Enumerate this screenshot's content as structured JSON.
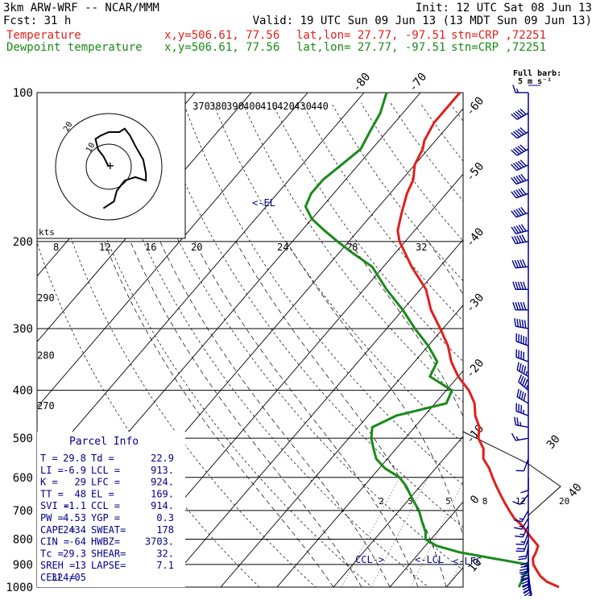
{
  "header": {
    "model": "3km ARW-WRF -- NCAR/MMM",
    "init": "Init: 12 UTC Sat 08 Jun 13",
    "fcst": "Fcst:   31 h",
    "valid": "Valid: 19 UTC Sun 09 Jun 13 (13 MDT Sun 09 Jun 13)",
    "temp_line": {
      "label": "Temperature",
      "coords": "x,y=506.61, 77.56",
      "latlon": "lat,lon= 27.77, -97.51",
      "station": "stn=CRP ,72251"
    },
    "dew_line": {
      "label": "Dewpoint temperature",
      "coords": "x,y=506.61, 77.56",
      "latlon": "lat,lon= 27.77, -97.51",
      "station": "stn=CRP ,72251"
    }
  },
  "colors": {
    "temperature": "#e0201c",
    "dewpoint": "#1a8a1a",
    "axes": "#000000",
    "annot": "#00008b",
    "wind": "#00008b"
  },
  "barb_key": {
    "title": "Full barb:",
    "value": "5 m s⁻¹"
  },
  "parcel_info": {
    "title": "Parcel Info",
    "rows": [
      [
        "T  =",
        "29.8",
        "Td =",
        "22.9"
      ],
      [
        "LI =",
        "-6.9",
        "LCL =",
        "913."
      ],
      [
        "K  =",
        "29",
        "LFC =",
        "924."
      ],
      [
        "TT =",
        "48",
        "EL  =",
        "169."
      ],
      [
        "SVI =",
        "-1.1",
        "CCL =",
        "914."
      ],
      [
        "PW =",
        "4.53",
        "YGP =",
        "0.3"
      ],
      [
        "CAPE =",
        "2434",
        "SWEAT=",
        "178"
      ],
      [
        "CIN =",
        "-64",
        "HWBZ=",
        "3703."
      ],
      [
        "Tc =",
        "29.3",
        "SHEAR=",
        "32."
      ],
      [
        "SREH =",
        "13",
        "LAPSE=",
        "7.1"
      ],
      [
        "CELL =",
        "324/05",
        "",
        ""
      ]
    ]
  },
  "labels": {
    "el": "<-EL",
    "lcl": "<-LCL",
    "lfc": "<-LFC",
    "ccl": "CCL->"
  },
  "hodograph": {
    "unit_label": "kts",
    "ring_labels": [
      "10",
      "20"
    ],
    "trace": [
      [
        0,
        0
      ],
      [
        -2,
        -3
      ],
      [
        -4,
        -5
      ],
      [
        -5,
        -8
      ],
      [
        -3,
        -9
      ],
      [
        0,
        -10
      ],
      [
        4,
        -10
      ],
      [
        6,
        -11
      ],
      [
        8,
        -9
      ],
      [
        10,
        -6
      ],
      [
        13,
        -2
      ],
      [
        14,
        2
      ],
      [
        14,
        4
      ],
      [
        10,
        3
      ],
      [
        6,
        4
      ],
      [
        3,
        7
      ],
      [
        2,
        10
      ],
      [
        -2,
        12
      ]
    ]
  },
  "chart_data": {
    "type": "skew-t",
    "pressure_ticks": [
      100,
      200,
      300,
      400,
      500,
      600,
      700,
      800,
      900,
      1000
    ],
    "p_range": [
      1000,
      100
    ],
    "temp_ticks": [
      40,
      30,
      20,
      10,
      0,
      -10,
      -20,
      -30,
      -40,
      -50,
      -60,
      -70,
      -80
    ],
    "theta_e_labels": [
      {
        "text": "370",
        "t": -80
      },
      {
        "text": "380",
        "t": -76
      },
      {
        "text": "390",
        "t": -72
      },
      {
        "text": "400",
        "t": -68
      },
      {
        "text": "410",
        "t": -64
      },
      {
        "text": "420",
        "t": -60
      },
      {
        "text": "430",
        "t": -56
      },
      {
        "text": "440",
        "t": -52
      }
    ],
    "mixing_ratio_labels": [
      "2",
      "3",
      "5",
      "8",
      "12",
      "20"
    ],
    "theta_labels": [
      {
        "text": "290",
        "p": 260
      },
      {
        "text": "280",
        "p": 340
      },
      {
        "text": "270",
        "p": 430
      }
    ],
    "kts_labels": [
      "8",
      "12",
      "16",
      "20",
      "24",
      "28",
      "32"
    ],
    "temperature": [
      [
        1000,
        30
      ],
      [
        975,
        27
      ],
      [
        950,
        25
      ],
      [
        925,
        23.5
      ],
      [
        900,
        22
      ],
      [
        875,
        21
      ],
      [
        850,
        20.6
      ],
      [
        825,
        20
      ],
      [
        800,
        18
      ],
      [
        775,
        16
      ],
      [
        750,
        14
      ],
      [
        725,
        11.5
      ],
      [
        700,
        9.5
      ],
      [
        675,
        7.5
      ],
      [
        650,
        5.5
      ],
      [
        625,
        3.5
      ],
      [
        600,
        1.5
      ],
      [
        575,
        -0.5
      ],
      [
        550,
        -3
      ],
      [
        525,
        -4.5
      ],
      [
        500,
        -7
      ],
      [
        475,
        -8.5
      ],
      [
        450,
        -11
      ],
      [
        425,
        -13
      ],
      [
        400,
        -16
      ],
      [
        375,
        -20
      ],
      [
        350,
        -23.5
      ],
      [
        325,
        -26.5
      ],
      [
        300,
        -30.5
      ],
      [
        275,
        -35
      ],
      [
        250,
        -39
      ],
      [
        225,
        -45
      ],
      [
        200,
        -51
      ],
      [
        190,
        -53
      ],
      [
        175,
        -55
      ],
      [
        160,
        -57
      ],
      [
        150,
        -58
      ],
      [
        140,
        -60
      ],
      [
        130,
        -61
      ],
      [
        125,
        -62
      ],
      [
        115,
        -63
      ],
      [
        108,
        -63
      ],
      [
        100,
        -63
      ]
    ],
    "dewpoint": [
      [
        1000,
        22.9
      ],
      [
        975,
        22.5
      ],
      [
        950,
        22
      ],
      [
        925,
        22
      ],
      [
        900,
        21
      ],
      [
        875,
        14
      ],
      [
        850,
        7
      ],
      [
        825,
        2
      ],
      [
        800,
        -1
      ],
      [
        775,
        -2
      ],
      [
        750,
        -3.5
      ],
      [
        725,
        -5
      ],
      [
        700,
        -6.5
      ],
      [
        675,
        -8.5
      ],
      [
        650,
        -10.5
      ],
      [
        625,
        -12.5
      ],
      [
        600,
        -15
      ],
      [
        575,
        -19
      ],
      [
        550,
        -22
      ],
      [
        525,
        -24
      ],
      [
        500,
        -26
      ],
      [
        475,
        -27.5
      ],
      [
        450,
        -25
      ],
      [
        425,
        -18
      ],
      [
        400,
        -19
      ],
      [
        375,
        -25
      ],
      [
        350,
        -26
      ],
      [
        325,
        -30
      ],
      [
        300,
        -35
      ],
      [
        275,
        -40
      ],
      [
        250,
        -46
      ],
      [
        225,
        -52
      ],
      [
        210,
        -58
      ],
      [
        200,
        -62
      ],
      [
        190,
        -66
      ],
      [
        180,
        -70
      ],
      [
        170,
        -73
      ],
      [
        160,
        -74
      ],
      [
        150,
        -74
      ],
      [
        140,
        -73
      ],
      [
        130,
        -72
      ],
      [
        120,
        -73
      ],
      [
        110,
        -74
      ],
      [
        100,
        -76
      ]
    ],
    "wind_barbs": [
      [
        1000,
        160,
        5
      ],
      [
        975,
        165,
        6
      ],
      [
        950,
        170,
        6
      ],
      [
        925,
        175,
        6
      ],
      [
        900,
        180,
        6
      ],
      [
        875,
        185,
        5
      ],
      [
        850,
        180,
        4
      ],
      [
        825,
        190,
        4
      ],
      [
        800,
        200,
        4
      ],
      [
        775,
        200,
        3
      ],
      [
        750,
        205,
        3
      ],
      [
        725,
        210,
        3
      ],
      [
        700,
        210,
        3
      ],
      [
        650,
        220,
        2
      ],
      [
        600,
        180,
        2
      ],
      [
        550,
        200,
        2
      ],
      [
        500,
        260,
        3
      ],
      [
        475,
        280,
        5
      ],
      [
        450,
        290,
        7
      ],
      [
        425,
        300,
        8
      ],
      [
        400,
        310,
        9
      ],
      [
        375,
        300,
        9
      ],
      [
        350,
        290,
        8
      ],
      [
        325,
        290,
        10
      ],
      [
        300,
        280,
        11
      ],
      [
        275,
        270,
        12
      ],
      [
        250,
        270,
        13
      ],
      [
        225,
        265,
        13
      ],
      [
        200,
        260,
        12
      ],
      [
        190,
        255,
        13
      ],
      [
        175,
        250,
        14
      ],
      [
        160,
        250,
        14
      ],
      [
        150,
        250,
        13
      ],
      [
        140,
        245,
        12
      ],
      [
        130,
        240,
        12
      ],
      [
        120,
        240,
        11
      ],
      [
        110,
        240,
        10
      ],
      [
        100,
        270,
        3
      ]
    ]
  }
}
